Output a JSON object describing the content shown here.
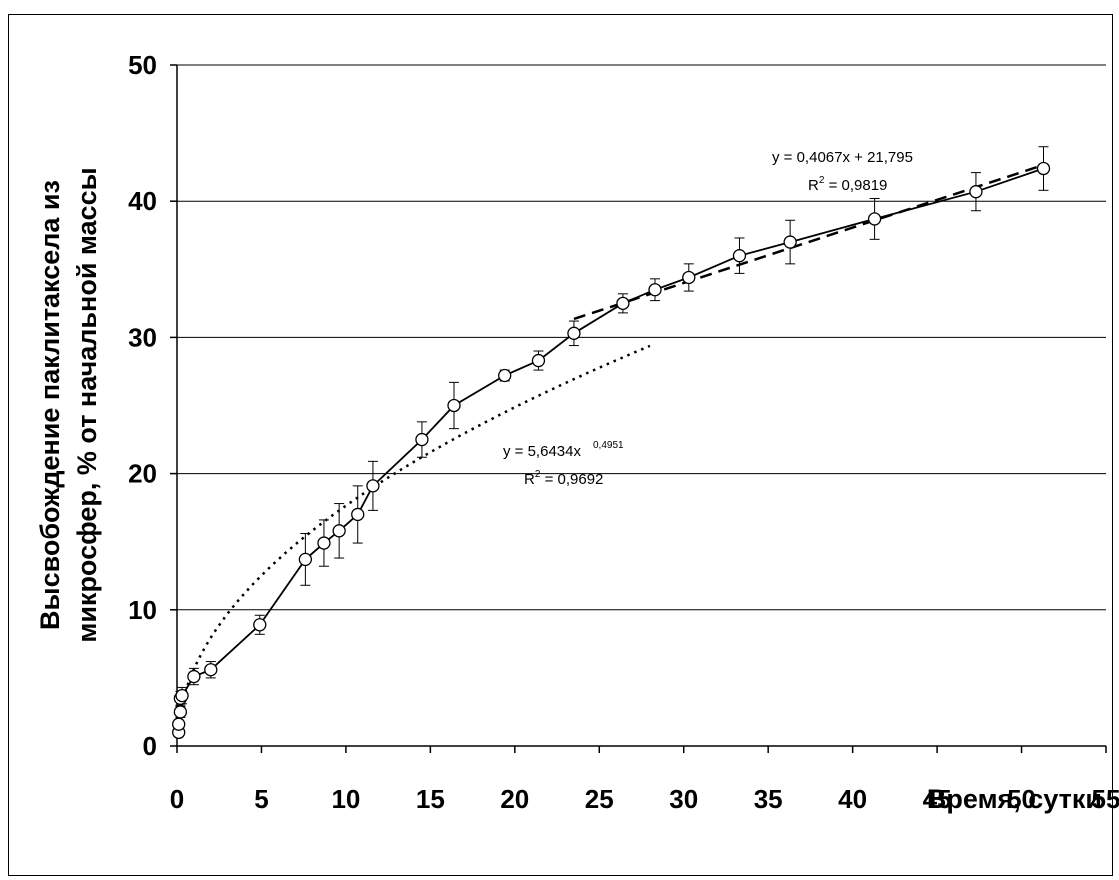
{
  "chart_data": {
    "type": "line",
    "title": "",
    "xlabel": "Время, сутки",
    "ylabel_lines": [
      "Высвобождение паклитаксела из",
      "микросфер, % от начальной массы"
    ],
    "xlim": [
      0,
      55
    ],
    "ylim": [
      0,
      50
    ],
    "x_ticks": [
      0,
      5,
      10,
      15,
      20,
      25,
      30,
      35,
      40,
      45,
      50,
      55
    ],
    "y_ticks": [
      0,
      10,
      20,
      30,
      40,
      50
    ],
    "grid": "horizontal",
    "legend": "none",
    "series": [
      {
        "style": "solid-with-markers",
        "x": [
          0.1,
          0.1,
          0.2,
          0.2,
          0.3,
          1.0,
          2.0,
          4.9,
          7.6,
          8.7,
          9.6,
          10.7,
          11.6,
          14.5,
          16.4,
          19.4,
          21.4,
          23.5,
          26.4,
          28.3,
          30.3,
          33.3,
          36.3,
          41.3,
          47.3,
          51.3
        ],
        "y": [
          1.0,
          1.6,
          2.5,
          3.5,
          3.7,
          5.1,
          5.6,
          8.9,
          13.7,
          14.9,
          15.8,
          17.0,
          19.1,
          22.5,
          25.0,
          27.2,
          28.3,
          30.3,
          32.5,
          33.5,
          34.4,
          36.0,
          37.0,
          38.7,
          40.7,
          42.4
        ],
        "err": [
          0.3,
          0.3,
          0.4,
          0.5,
          0.6,
          0.6,
          0.6,
          0.7,
          1.9,
          1.7,
          2.0,
          2.1,
          1.8,
          1.3,
          1.7,
          0.4,
          0.7,
          0.9,
          0.7,
          0.8,
          1.0,
          1.3,
          1.6,
          1.5,
          1.4,
          1.6
        ]
      },
      {
        "style": "dotted-power-trend",
        "equation": "y = 5,6434x",
        "exponent": "0,4951",
        "r2_label": "R",
        "r2_value": " = 0,9692",
        "coef_a": 5.6434,
        "coef_b": 0.4951,
        "x_range": [
          0.1,
          28.0
        ]
      },
      {
        "style": "dashed-linear-trend",
        "equation": "y = 0,4067x + 21,795",
        "r2_label": "R",
        "r2_value": " = 0,9819",
        "slope": 0.4067,
        "intercept": 21.795,
        "x_range": [
          23.5,
          51.3
        ]
      }
    ]
  }
}
